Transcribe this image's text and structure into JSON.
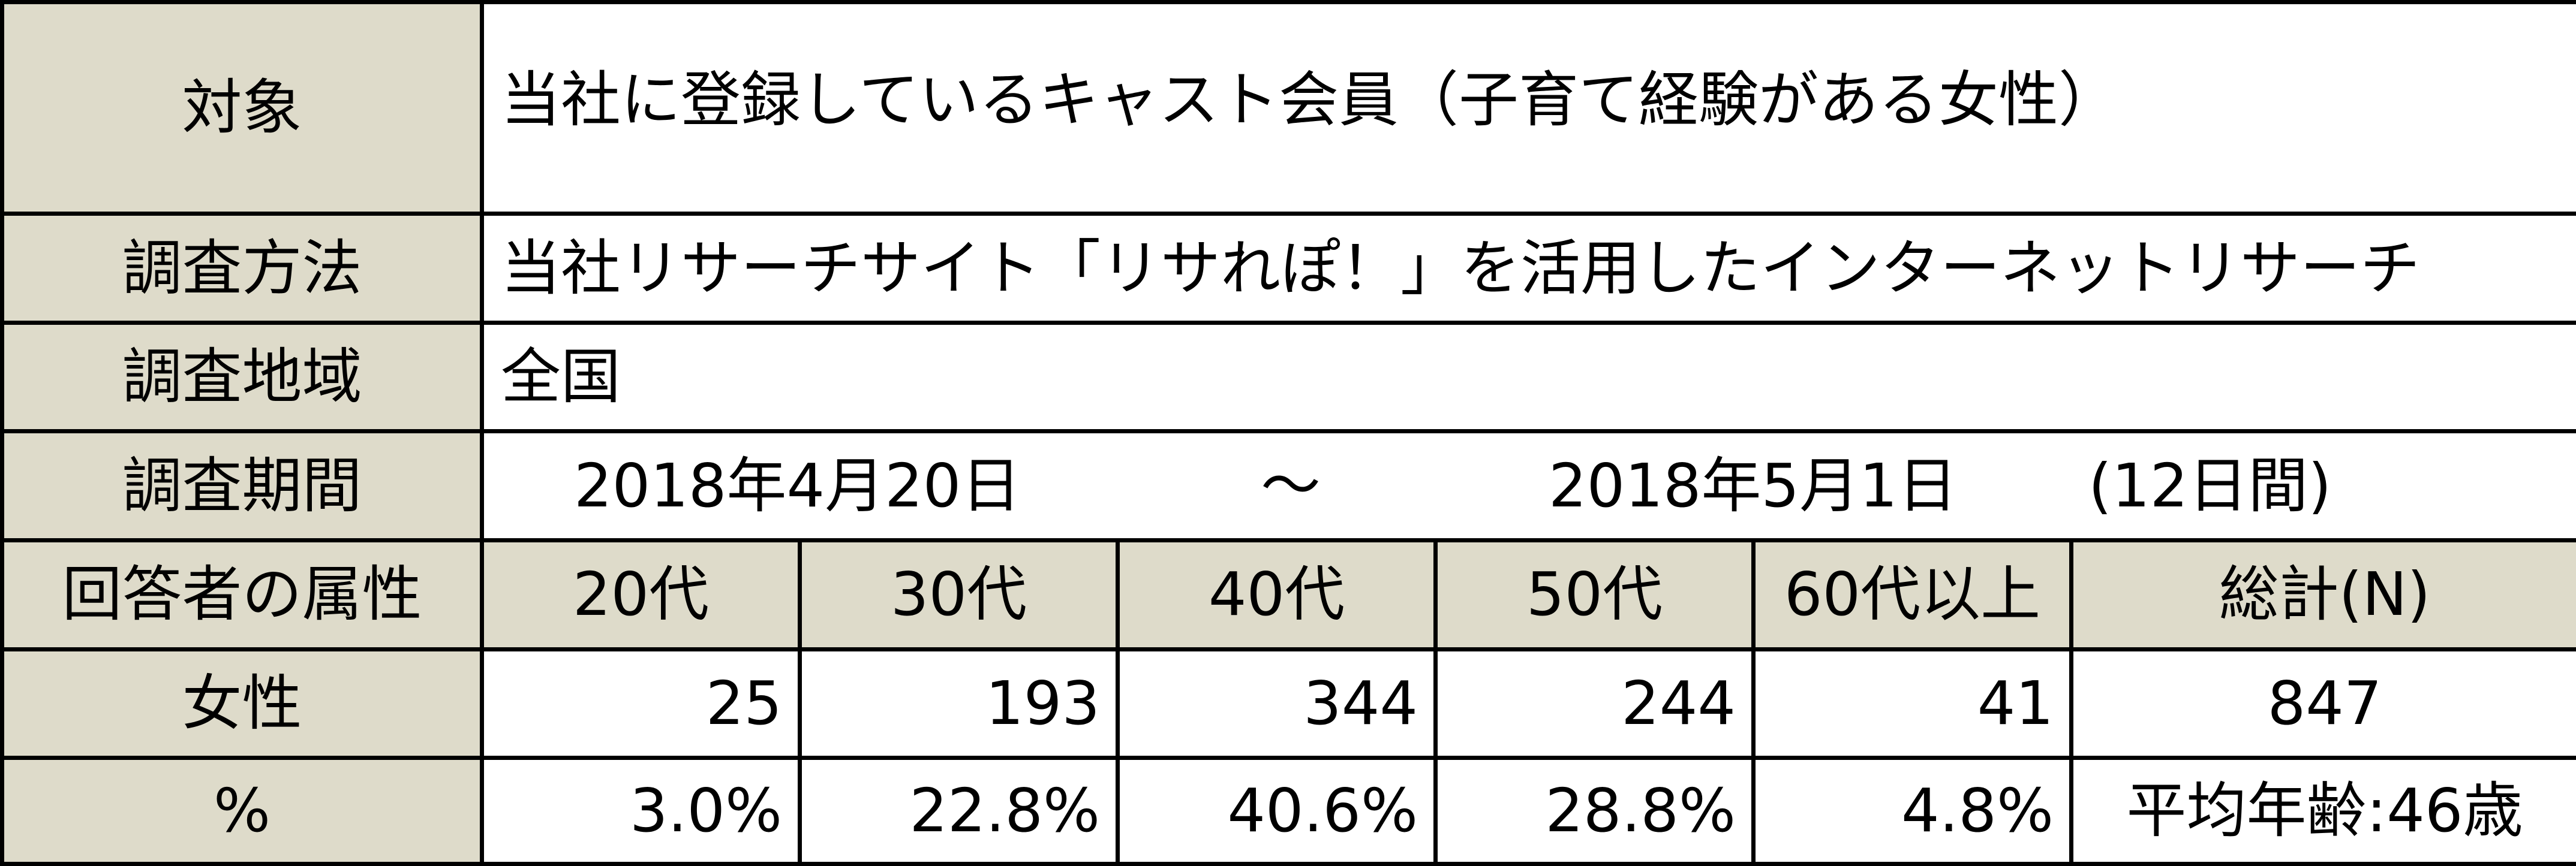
{
  "table": {
    "target": {
      "label": "対象",
      "value": "当社に登録しているキャスト会員（子育て経験がある女性）"
    },
    "method": {
      "label": "調査方法",
      "value": "当社リサーチサイト「リサれぽ！」を活用したインターネットリサーチ"
    },
    "region": {
      "label": "調査地域",
      "value": "全国"
    },
    "period": {
      "label": "調査期間",
      "start": "2018年4月20日",
      "separator": "～",
      "end": "2018年5月1日",
      "days": "(12日間)"
    },
    "attributes": {
      "label": "回答者の属性",
      "columns": [
        "20代",
        "30代",
        "40代",
        "50代",
        "60代以上",
        "総計(N)"
      ]
    },
    "female": {
      "label": "女性",
      "values": [
        "25",
        "193",
        "344",
        "244",
        "41",
        "847"
      ]
    },
    "percent": {
      "label": "%",
      "values": [
        "3.0%",
        "22.8%",
        "40.6%",
        "28.8%",
        "4.8%",
        "平均年齢:46歳"
      ]
    }
  },
  "colors": {
    "header_bg": "#dedbca",
    "border": "#000000",
    "cell_bg": "#ffffff"
  }
}
